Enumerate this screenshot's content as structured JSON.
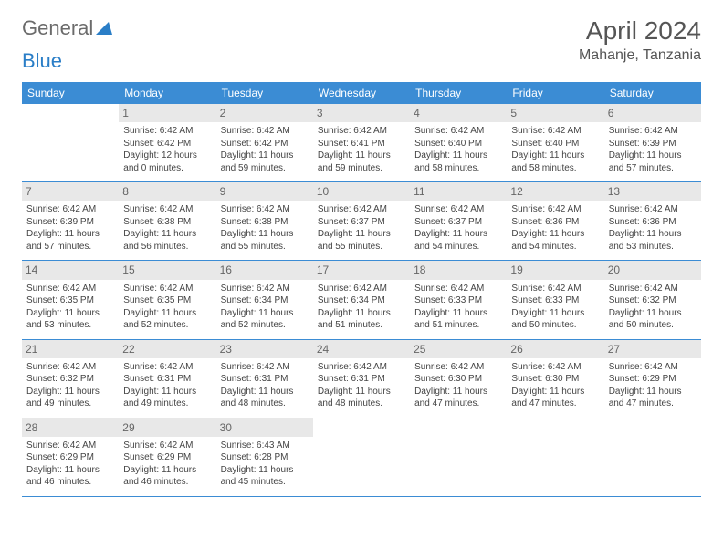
{
  "logo": {
    "text1": "General",
    "text2": "Blue",
    "color1": "#6b6b6b",
    "color2": "#2a7ec7",
    "icon_color": "#2a7ec7"
  },
  "title": "April 2024",
  "location": "Mahanje, Tanzania",
  "colors": {
    "header_bg": "#3b8cd4",
    "header_fg": "#ffffff",
    "daynum_bg": "#e8e8e8",
    "border": "#3b8cd4",
    "text": "#444444"
  },
  "weekdays": [
    "Sunday",
    "Monday",
    "Tuesday",
    "Wednesday",
    "Thursday",
    "Friday",
    "Saturday"
  ],
  "weeks": [
    [
      null,
      {
        "n": "1",
        "sr": "Sunrise: 6:42 AM",
        "ss": "Sunset: 6:42 PM",
        "dl": "Daylight: 12 hours and 0 minutes."
      },
      {
        "n": "2",
        "sr": "Sunrise: 6:42 AM",
        "ss": "Sunset: 6:42 PM",
        "dl": "Daylight: 11 hours and 59 minutes."
      },
      {
        "n": "3",
        "sr": "Sunrise: 6:42 AM",
        "ss": "Sunset: 6:41 PM",
        "dl": "Daylight: 11 hours and 59 minutes."
      },
      {
        "n": "4",
        "sr": "Sunrise: 6:42 AM",
        "ss": "Sunset: 6:40 PM",
        "dl": "Daylight: 11 hours and 58 minutes."
      },
      {
        "n": "5",
        "sr": "Sunrise: 6:42 AM",
        "ss": "Sunset: 6:40 PM",
        "dl": "Daylight: 11 hours and 58 minutes."
      },
      {
        "n": "6",
        "sr": "Sunrise: 6:42 AM",
        "ss": "Sunset: 6:39 PM",
        "dl": "Daylight: 11 hours and 57 minutes."
      }
    ],
    [
      {
        "n": "7",
        "sr": "Sunrise: 6:42 AM",
        "ss": "Sunset: 6:39 PM",
        "dl": "Daylight: 11 hours and 57 minutes."
      },
      {
        "n": "8",
        "sr": "Sunrise: 6:42 AM",
        "ss": "Sunset: 6:38 PM",
        "dl": "Daylight: 11 hours and 56 minutes."
      },
      {
        "n": "9",
        "sr": "Sunrise: 6:42 AM",
        "ss": "Sunset: 6:38 PM",
        "dl": "Daylight: 11 hours and 55 minutes."
      },
      {
        "n": "10",
        "sr": "Sunrise: 6:42 AM",
        "ss": "Sunset: 6:37 PM",
        "dl": "Daylight: 11 hours and 55 minutes."
      },
      {
        "n": "11",
        "sr": "Sunrise: 6:42 AM",
        "ss": "Sunset: 6:37 PM",
        "dl": "Daylight: 11 hours and 54 minutes."
      },
      {
        "n": "12",
        "sr": "Sunrise: 6:42 AM",
        "ss": "Sunset: 6:36 PM",
        "dl": "Daylight: 11 hours and 54 minutes."
      },
      {
        "n": "13",
        "sr": "Sunrise: 6:42 AM",
        "ss": "Sunset: 6:36 PM",
        "dl": "Daylight: 11 hours and 53 minutes."
      }
    ],
    [
      {
        "n": "14",
        "sr": "Sunrise: 6:42 AM",
        "ss": "Sunset: 6:35 PM",
        "dl": "Daylight: 11 hours and 53 minutes."
      },
      {
        "n": "15",
        "sr": "Sunrise: 6:42 AM",
        "ss": "Sunset: 6:35 PM",
        "dl": "Daylight: 11 hours and 52 minutes."
      },
      {
        "n": "16",
        "sr": "Sunrise: 6:42 AM",
        "ss": "Sunset: 6:34 PM",
        "dl": "Daylight: 11 hours and 52 minutes."
      },
      {
        "n": "17",
        "sr": "Sunrise: 6:42 AM",
        "ss": "Sunset: 6:34 PM",
        "dl": "Daylight: 11 hours and 51 minutes."
      },
      {
        "n": "18",
        "sr": "Sunrise: 6:42 AM",
        "ss": "Sunset: 6:33 PM",
        "dl": "Daylight: 11 hours and 51 minutes."
      },
      {
        "n": "19",
        "sr": "Sunrise: 6:42 AM",
        "ss": "Sunset: 6:33 PM",
        "dl": "Daylight: 11 hours and 50 minutes."
      },
      {
        "n": "20",
        "sr": "Sunrise: 6:42 AM",
        "ss": "Sunset: 6:32 PM",
        "dl": "Daylight: 11 hours and 50 minutes."
      }
    ],
    [
      {
        "n": "21",
        "sr": "Sunrise: 6:42 AM",
        "ss": "Sunset: 6:32 PM",
        "dl": "Daylight: 11 hours and 49 minutes."
      },
      {
        "n": "22",
        "sr": "Sunrise: 6:42 AM",
        "ss": "Sunset: 6:31 PM",
        "dl": "Daylight: 11 hours and 49 minutes."
      },
      {
        "n": "23",
        "sr": "Sunrise: 6:42 AM",
        "ss": "Sunset: 6:31 PM",
        "dl": "Daylight: 11 hours and 48 minutes."
      },
      {
        "n": "24",
        "sr": "Sunrise: 6:42 AM",
        "ss": "Sunset: 6:31 PM",
        "dl": "Daylight: 11 hours and 48 minutes."
      },
      {
        "n": "25",
        "sr": "Sunrise: 6:42 AM",
        "ss": "Sunset: 6:30 PM",
        "dl": "Daylight: 11 hours and 47 minutes."
      },
      {
        "n": "26",
        "sr": "Sunrise: 6:42 AM",
        "ss": "Sunset: 6:30 PM",
        "dl": "Daylight: 11 hours and 47 minutes."
      },
      {
        "n": "27",
        "sr": "Sunrise: 6:42 AM",
        "ss": "Sunset: 6:29 PM",
        "dl": "Daylight: 11 hours and 47 minutes."
      }
    ],
    [
      {
        "n": "28",
        "sr": "Sunrise: 6:42 AM",
        "ss": "Sunset: 6:29 PM",
        "dl": "Daylight: 11 hours and 46 minutes."
      },
      {
        "n": "29",
        "sr": "Sunrise: 6:42 AM",
        "ss": "Sunset: 6:29 PM",
        "dl": "Daylight: 11 hours and 46 minutes."
      },
      {
        "n": "30",
        "sr": "Sunrise: 6:43 AM",
        "ss": "Sunset: 6:28 PM",
        "dl": "Daylight: 11 hours and 45 minutes."
      },
      null,
      null,
      null,
      null
    ]
  ]
}
